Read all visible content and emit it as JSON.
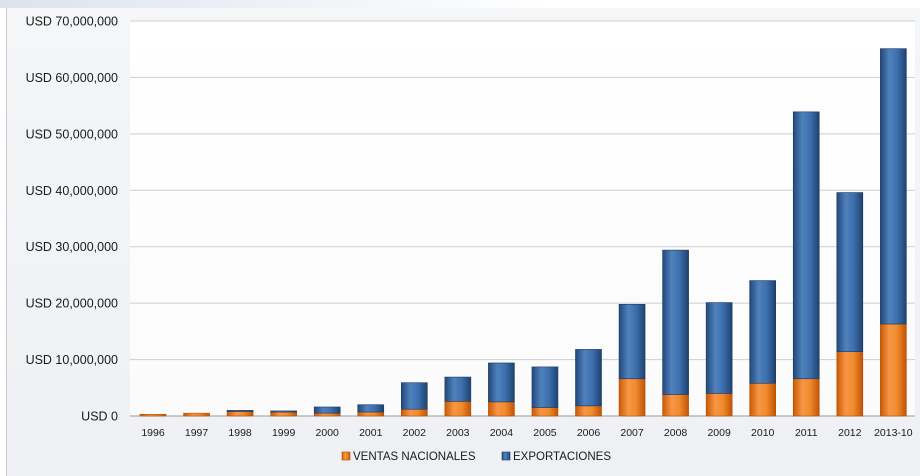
{
  "chart_data": {
    "type": "bar",
    "stacked": true,
    "title": "",
    "xlabel": "",
    "ylabel": "",
    "y_prefix": "USD",
    "ylim": [
      0,
      70000000
    ],
    "yticks": [
      0,
      10000000,
      20000000,
      30000000,
      40000000,
      50000000,
      60000000,
      70000000
    ],
    "ytick_labels": [
      "USD 0",
      "USD 10,000,000",
      "USD 20,000,000",
      "USD 30,000,000",
      "USD 40,000,000",
      "USD 50,000,000",
      "USD 60,000,000",
      "USD 70,000,000"
    ],
    "grid": true,
    "legend_position": "bottom",
    "categories": [
      "1996",
      "1997",
      "1998",
      "1999",
      "2000",
      "2001",
      "2002",
      "2003",
      "2004",
      "2005",
      "2006",
      "2007",
      "2008",
      "2009",
      "2010",
      "2011",
      "2012",
      "2013-10"
    ],
    "series": [
      {
        "name": "VENTAS NACIONALES",
        "color": "#e46c0a",
        "values": [
          300000,
          500000,
          800000,
          700000,
          500000,
          700000,
          1200000,
          2600000,
          2500000,
          1500000,
          1800000,
          6600000,
          3800000,
          4000000,
          5800000,
          6600000,
          11400000,
          16300000
        ]
      },
      {
        "name": "EXPORTACIONES",
        "color": "#2e5c94",
        "values": [
          0,
          0,
          200000,
          200000,
          1100000,
          1300000,
          4700000,
          4300000,
          6900000,
          7200000,
          10000000,
          13200000,
          25600000,
          16100000,
          18200000,
          47300000,
          28200000,
          48800000
        ]
      }
    ]
  }
}
